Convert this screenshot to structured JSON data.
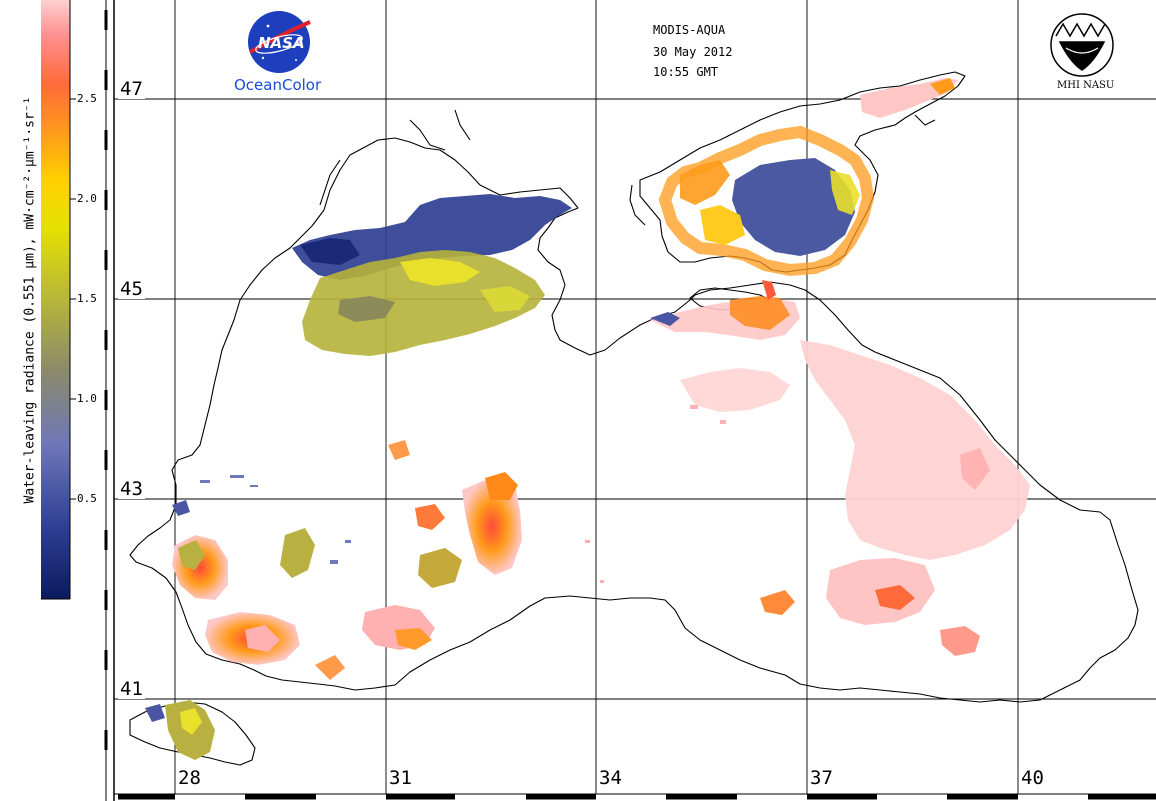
{
  "header": {
    "sensor": "MODIS-AQUA",
    "date": "30 May 2012",
    "time": "10:55 GMT"
  },
  "logos": {
    "nasa_text": "NASA",
    "oceancolor_text": "OceanColor",
    "mhi_text": "MHI NASU"
  },
  "colorbar": {
    "title": "Water-leaving radiance (0.551 µm), mW·cm⁻²·µm⁻¹·sr⁻¹",
    "ticks": [
      "2.5",
      "2.0",
      "1.5",
      "1.0",
      "0.5"
    ],
    "colors": [
      "#0b1a5e",
      "#2e3f94",
      "#6f78b8",
      "#8a8a6a",
      "#b7b63a",
      "#e4e100",
      "#ffd000",
      "#ff9a1a",
      "#ff6a3a",
      "#ff8f8f",
      "#ffd0d0"
    ]
  },
  "grid": {
    "latitudes": [
      "47",
      "45",
      "43",
      "41"
    ],
    "longitudes": [
      "28",
      "31",
      "34",
      "37",
      "40"
    ]
  },
  "colors": {
    "low": "#2e3f94",
    "mid": "#b7b63a",
    "high": "#ff6a3a",
    "very_high": "#ffc6c6"
  }
}
